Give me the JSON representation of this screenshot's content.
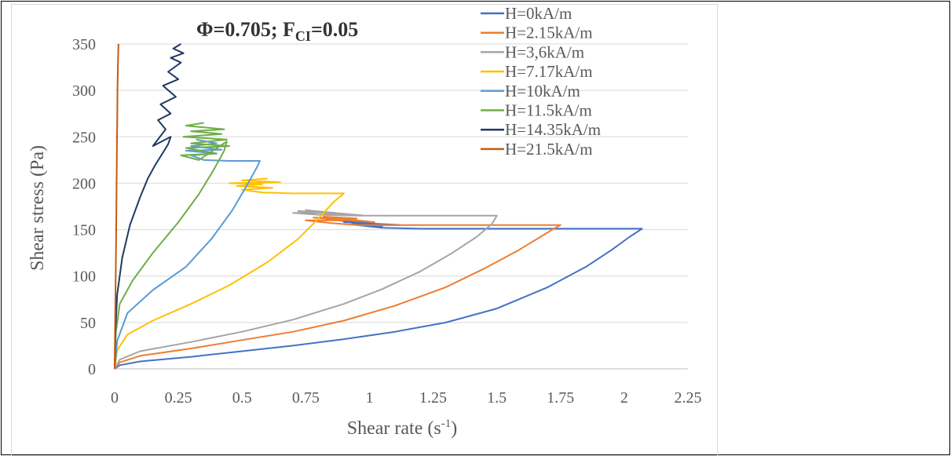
{
  "chart_data": {
    "type": "line",
    "title": "Φ=0.705; F",
    "title_subscript": "CI",
    "title_suffix": "=0.05",
    "xlabel": "Shear rate (s",
    "xlabel_superscript": "-1",
    "xlabel_suffix": ")",
    "ylabel": "Shear stress (Pa)",
    "xlim": [
      0,
      2.25
    ],
    "ylim": [
      0,
      350
    ],
    "x_ticks": [
      "0",
      "0.25",
      "0.5",
      "0.75",
      "1",
      "1.25",
      "1.5",
      "1.75",
      "2",
      "2.25"
    ],
    "y_ticks": [
      "0",
      "50",
      "100",
      "150",
      "200",
      "250",
      "300",
      "350"
    ],
    "x_tick_values": [
      0,
      0.25,
      0.5,
      0.75,
      1,
      1.25,
      1.5,
      1.75,
      2,
      2.25
    ],
    "y_tick_values": [
      0,
      50,
      100,
      150,
      200,
      250,
      300,
      350
    ],
    "grid": "horizontal",
    "legend_position": "top-right",
    "series": [
      {
        "name": "H=0kA/m",
        "color": "#4472C4",
        "x": [
          0,
          0.02,
          0.1,
          0.3,
          0.5,
          0.7,
          0.9,
          1.1,
          1.3,
          1.5,
          1.7,
          1.85,
          1.95,
          2.02,
          2.07,
          1.8,
          1.5,
          1.2,
          1.05,
          0.95,
          1.12,
          0.9,
          1.0,
          0.88,
          1.05,
          0.93
        ],
        "y": [
          0,
          4,
          8,
          13,
          19,
          25,
          32,
          40,
          50,
          65,
          88,
          110,
          128,
          142,
          151,
          151,
          151,
          151,
          152,
          155,
          155,
          158,
          158,
          160,
          153,
          157
        ]
      },
      {
        "name": "H=2.15kA/m",
        "color": "#ED7D31",
        "x": [
          0,
          0.02,
          0.1,
          0.3,
          0.5,
          0.7,
          0.9,
          1.1,
          1.3,
          1.45,
          1.58,
          1.67,
          1.73,
          1.75,
          1.5,
          1.2,
          0.95,
          0.85,
          0.75,
          0.9,
          0.78,
          0.95,
          0.82,
          1.02,
          0.88
        ],
        "y": [
          0,
          7,
          14,
          22,
          31,
          40,
          52,
          68,
          88,
          108,
          127,
          142,
          152,
          155,
          155,
          155,
          155,
          157,
          160,
          160,
          163,
          162,
          164,
          158,
          161
        ]
      },
      {
        "name": "H=3,6kA/m",
        "color": "#A5A5A5",
        "x": [
          0,
          0.02,
          0.1,
          0.3,
          0.5,
          0.7,
          0.9,
          1.05,
          1.2,
          1.32,
          1.42,
          1.48,
          1.5,
          1.2,
          0.95,
          0.8,
          0.7,
          0.85,
          0.72,
          0.9,
          0.75,
          0.98,
          0.8
        ],
        "y": [
          0,
          10,
          19,
          29,
          40,
          53,
          70,
          86,
          105,
          124,
          142,
          156,
          165,
          165,
          165,
          166,
          168,
          168,
          170,
          167,
          171,
          165,
          168
        ]
      },
      {
        "name": "H=7.17kA/m",
        "color": "#FFC000",
        "x": [
          0,
          0.01,
          0.05,
          0.15,
          0.3,
          0.45,
          0.6,
          0.72,
          0.8,
          0.86,
          0.9,
          0.7,
          0.58,
          0.5,
          0.62,
          0.48,
          0.58,
          0.45,
          0.65,
          0.5,
          0.6
        ],
        "y": [
          0,
          20,
          37,
          52,
          70,
          90,
          115,
          140,
          162,
          180,
          189,
          189,
          190,
          193,
          195,
          197,
          199,
          200,
          201,
          203,
          205
        ]
      },
      {
        "name": "H=10kA/m",
        "color": "#5B9BD5",
        "x": [
          0,
          0.01,
          0.05,
          0.15,
          0.28,
          0.38,
          0.46,
          0.52,
          0.56,
          0.57,
          0.45,
          0.35,
          0.3,
          0.4,
          0.28,
          0.42,
          0.3,
          0.4,
          0.32
        ],
        "y": [
          0,
          30,
          60,
          85,
          110,
          140,
          170,
          198,
          218,
          224,
          224,
          225,
          230,
          232,
          235,
          236,
          240,
          243,
          247
        ]
      },
      {
        "name": "H=11.5kA/m",
        "color": "#70AD47",
        "x": [
          0,
          0.005,
          0.02,
          0.07,
          0.15,
          0.25,
          0.33,
          0.39,
          0.43,
          0.44,
          0.33,
          0.26,
          0.4,
          0.28,
          0.45,
          0.3,
          0.44,
          0.27,
          0.42,
          0.3,
          0.43,
          0.28,
          0.35
        ],
        "y": [
          0,
          40,
          70,
          95,
          125,
          158,
          188,
          215,
          235,
          245,
          225,
          230,
          232,
          238,
          240,
          243,
          247,
          250,
          253,
          256,
          258,
          262,
          265
        ]
      },
      {
        "name": "H=14.35kA/m",
        "color": "#203864",
        "x": [
          0,
          0.003,
          0.01,
          0.03,
          0.06,
          0.1,
          0.13,
          0.16,
          0.19,
          0.21,
          0.22,
          0.15,
          0.2,
          0.17,
          0.22,
          0.18,
          0.24,
          0.19,
          0.25,
          0.21,
          0.26,
          0.22,
          0.27,
          0.23,
          0.26
        ],
        "y": [
          0,
          40,
          80,
          120,
          155,
          185,
          205,
          220,
          233,
          242,
          250,
          240,
          258,
          268,
          275,
          285,
          293,
          305,
          312,
          320,
          330,
          335,
          340,
          345,
          350
        ]
      },
      {
        "name": "H=21.5kA/m",
        "color": "#C55A11",
        "x": [
          0,
          0.002,
          0.005,
          0.007,
          0.009,
          0.01,
          0.011,
          0.013,
          0.015
        ],
        "y": [
          0,
          50,
          120,
          180,
          240,
          260,
          300,
          330,
          350
        ]
      }
    ]
  }
}
